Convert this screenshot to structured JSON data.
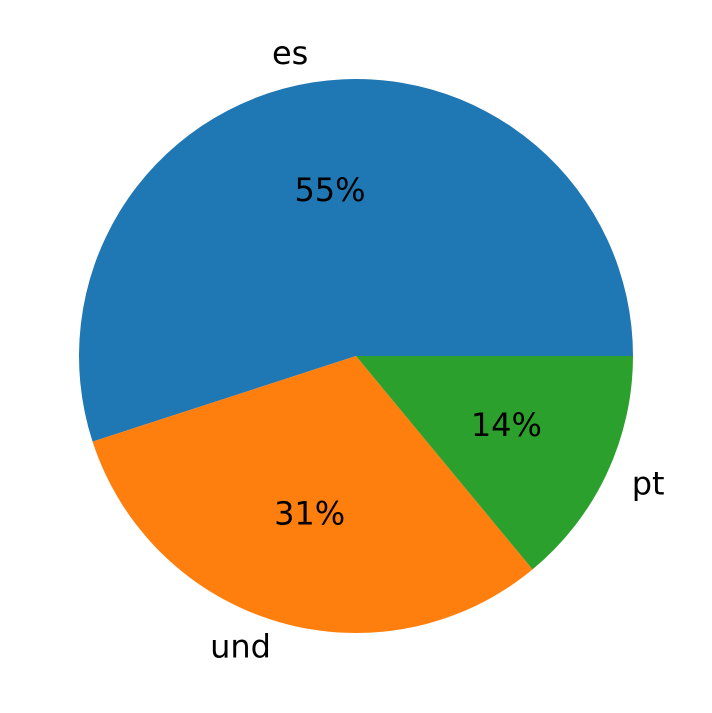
{
  "chart_data": {
    "type": "pie",
    "categories": [
      "es",
      "und",
      "pt"
    ],
    "values": [
      55,
      31,
      14
    ],
    "value_labels": [
      "55%",
      "31%",
      "14%"
    ],
    "colors": [
      "#1f77b4",
      "#ff7f0e",
      "#2ca02c"
    ],
    "start_angle": 0,
    "counterclockwise": true
  }
}
